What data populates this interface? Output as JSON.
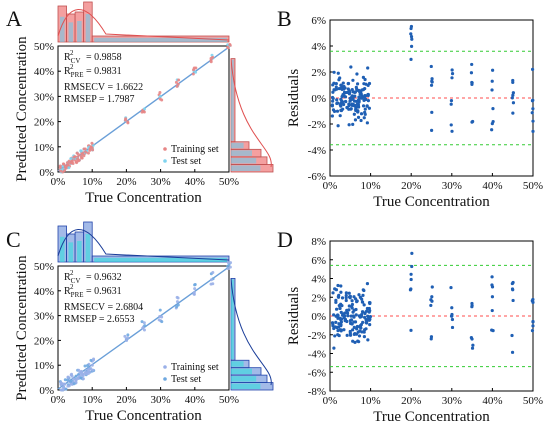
{
  "colors": {
    "points": "#1f5fb4",
    "zero_line": "#ff4d4d",
    "bound_line": "#33cc33",
    "fit_line": "#6a9fd8",
    "train_A": "#f08080",
    "test_A": "#66ccee",
    "train_C": "#3366cc",
    "test_C": "#33dddd"
  },
  "chart_data": [
    {
      "panel": "A",
      "type": "scatter",
      "xlabel": "True Concentration",
      "ylabel": "Predicted Concentration",
      "x_ticks": [
        "0%",
        "10%",
        "20%",
        "30%",
        "40%",
        "50%"
      ],
      "y_ticks": [
        "0%",
        "10%",
        "20%",
        "30%",
        "40%",
        "50%"
      ],
      "xlim": [
        0,
        50
      ],
      "ylim": [
        0,
        50
      ],
      "stats": [
        "= 0.9858",
        "= 0.9831",
        "RMSECV = 1.6622",
        "RMSEP = 1.7987"
      ],
      "stat_labels": [
        {
          "main": "R",
          "sub": "CV"
        },
        {
          "main": "R",
          "sub": "PRE"
        }
      ],
      "legend": [
        "Training set",
        "Test set"
      ],
      "levels": [
        1,
        2,
        3,
        4,
        5,
        6,
        7,
        8,
        9,
        10,
        20,
        25,
        30,
        35,
        40,
        45,
        50
      ]
    },
    {
      "panel": "B",
      "type": "scatter",
      "xlabel": "True Concentration",
      "ylabel": "Residuals",
      "x_ticks": [
        "0%",
        "10%",
        "20%",
        "30%",
        "40%",
        "50%"
      ],
      "y_ticks": [
        "-6%",
        "-4%",
        "-2%",
        "0%",
        "2%",
        "4%",
        "6%"
      ],
      "xlim": [
        0,
        50
      ],
      "ylim": [
        -6,
        6
      ],
      "bounds": [
        3.6,
        -3.6
      ],
      "zero_line": 0
    },
    {
      "panel": "C",
      "type": "scatter",
      "xlabel": "True Concentration",
      "ylabel": "Predicted Concentration",
      "x_ticks": [
        "0%",
        "10%",
        "20%",
        "30%",
        "40%",
        "50%"
      ],
      "y_ticks": [
        "0%",
        "10%",
        "20%",
        "30%",
        "40%",
        "50%"
      ],
      "xlim": [
        0,
        50
      ],
      "ylim": [
        0,
        50
      ],
      "stats": [
        "= 0.9632",
        "= 0.9631",
        "RMSECV = 2.6804",
        "RMSEP = 2.6553"
      ],
      "stat_labels": [
        {
          "main": "R",
          "sub": "CV"
        },
        {
          "main": "R",
          "sub": "PRE"
        }
      ],
      "legend": [
        "Training set",
        "Test set"
      ],
      "levels": [
        1,
        2,
        3,
        4,
        5,
        6,
        7,
        8,
        9,
        10,
        20,
        25,
        30,
        35,
        40,
        45,
        50
      ]
    },
    {
      "panel": "D",
      "type": "scatter",
      "xlabel": "True Concentration",
      "ylabel": "Residuals",
      "x_ticks": [
        "0%",
        "10%",
        "20%",
        "30%",
        "40%",
        "50%"
      ],
      "y_ticks": [
        "-8%",
        "-6%",
        "-4%",
        "-2%",
        "0%",
        "2%",
        "4%",
        "6%",
        "8%"
      ],
      "xlim": [
        0,
        50
      ],
      "ylim": [
        -8,
        8
      ],
      "bounds": [
        5.4,
        -5.4
      ],
      "zero_line": 0
    }
  ]
}
